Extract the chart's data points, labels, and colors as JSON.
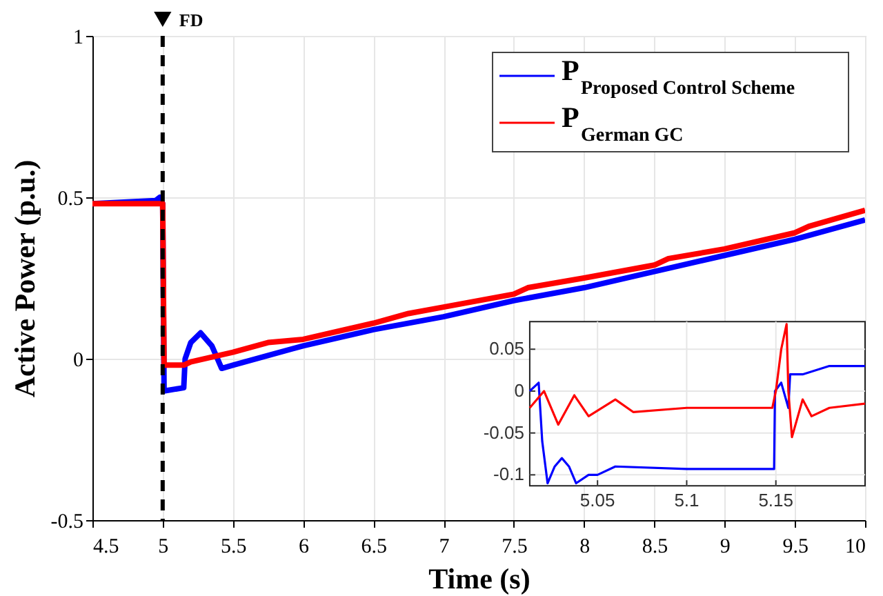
{
  "chart_data": [
    {
      "type": "line",
      "xlabel": "Time (s)",
      "ylabel": "Active Power (p.u.)",
      "xlim": [
        4.5,
        10
      ],
      "xticks": [
        4.5,
        5,
        5.5,
        6,
        6.5,
        7,
        7.5,
        8,
        8.5,
        9,
        9.5,
        10
      ],
      "ylim": [
        -0.5,
        1
      ],
      "yticks": [
        -0.5,
        0,
        0.5,
        1
      ],
      "grid": true,
      "legend": "top right",
      "ref_lines": [
        {
          "axis": "x",
          "value": 5,
          "label": "FD",
          "color": "#000000",
          "line_style": "dashed"
        }
      ],
      "series": [
        {
          "name": "P$_{Proposed Control Scheme}$",
          "color": "#0000ff",
          "x": [
            4.5,
            4.95,
            4.98,
            5.0,
            5.01,
            5.15,
            5.16,
            5.2,
            5.27,
            5.35,
            5.42,
            5.5,
            6,
            6.5,
            7,
            7.5,
            8,
            8.5,
            9,
            9.5,
            10
          ],
          "values": [
            0.48,
            0.49,
            0.5,
            0.48,
            -0.1,
            -0.09,
            0.0,
            0.05,
            0.08,
            0.04,
            -0.03,
            -0.02,
            0.04,
            0.09,
            0.13,
            0.18,
            0.22,
            0.27,
            0.32,
            0.37,
            0.43
          ]
        },
        {
          "name": "P$_{German GC}$",
          "color": "#ff0000",
          "x": [
            4.5,
            4.98,
            5.0,
            5.01,
            5.15,
            5.2,
            5.5,
            5.75,
            6,
            6.5,
            6.75,
            7,
            7.5,
            7.6,
            8,
            8.5,
            8.6,
            9,
            9.5,
            9.6,
            10
          ],
          "values": [
            0.48,
            0.48,
            0.48,
            -0.02,
            -0.02,
            -0.01,
            0.02,
            0.05,
            0.06,
            0.11,
            0.14,
            0.16,
            0.2,
            0.22,
            0.25,
            0.29,
            0.31,
            0.34,
            0.39,
            0.41,
            0.46
          ]
        }
      ]
    },
    {
      "type": "line",
      "xlim": [
        5.012,
        5.2
      ],
      "xticks": [
        5.05,
        5.1,
        5.15
      ],
      "ylim": [
        -0.113,
        0.083
      ],
      "yticks": [
        -0.1,
        -0.05,
        0,
        0.05
      ],
      "grid": true,
      "series": [
        {
          "color": "#0000ff",
          "x": [
            5.012,
            5.017,
            5.019,
            5.022,
            5.026,
            5.03,
            5.034,
            5.038,
            5.045,
            5.05,
            5.06,
            5.1,
            5.149,
            5.1495,
            5.153,
            5.157,
            5.158,
            5.165,
            5.18,
            5.2
          ],
          "values": [
            0.0,
            0.01,
            -0.06,
            -0.11,
            -0.09,
            -0.08,
            -0.09,
            -0.11,
            -0.1,
            -0.1,
            -0.09,
            -0.093,
            -0.093,
            0.0,
            0.01,
            -0.02,
            0.02,
            0.02,
            0.03,
            0.03
          ]
        },
        {
          "color": "#ff0000",
          "x": [
            5.012,
            5.02,
            5.028,
            5.037,
            5.045,
            5.06,
            5.07,
            5.1,
            5.148,
            5.15,
            5.153,
            5.156,
            5.157,
            5.159,
            5.165,
            5.17,
            5.18,
            5.2
          ],
          "values": [
            -0.02,
            0.0,
            -0.04,
            -0.005,
            -0.03,
            -0.01,
            -0.025,
            -0.02,
            -0.02,
            0.0,
            0.05,
            0.08,
            0.0,
            -0.055,
            -0.01,
            -0.03,
            -0.02,
            -0.015
          ]
        }
      ]
    }
  ]
}
